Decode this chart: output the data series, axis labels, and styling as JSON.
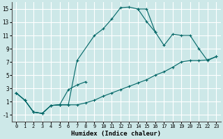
{
  "xlabel": "Humidex (Indice chaleur)",
  "bg_color": "#cde8e8",
  "grid_color": "#ffffff",
  "line_color": "#006666",
  "xlim": [
    -0.5,
    23.5
  ],
  "ylim": [
    -2,
    16
  ],
  "xticks": [
    0,
    1,
    2,
    3,
    4,
    5,
    6,
    7,
    8,
    9,
    10,
    11,
    12,
    13,
    14,
    15,
    16,
    17,
    18,
    19,
    20,
    21,
    22,
    23
  ],
  "yticks": [
    -1,
    1,
    3,
    5,
    7,
    9,
    11,
    13,
    15
  ],
  "curve1_x": [
    0,
    1,
    2,
    3,
    4,
    5,
    6,
    7,
    9,
    10,
    11,
    12,
    13,
    14,
    15,
    16
  ],
  "curve1_y": [
    2.3,
    1.2,
    -0.6,
    -0.8,
    0.4,
    0.5,
    0.5,
    7.2,
    11.0,
    12.0,
    13.5,
    15.2,
    15.3,
    15.0,
    13.1,
    11.5
  ],
  "curve2_x": [
    0,
    1,
    2,
    3,
    4,
    5,
    6,
    7,
    8,
    19,
    20,
    21,
    22,
    23
  ],
  "curve2_y": [
    2.3,
    1.2,
    -0.6,
    -0.8,
    0.4,
    0.5,
    2.8,
    3.5,
    4.0,
    11.0,
    11.0,
    9.0,
    7.2,
    7.8
  ],
  "curve2b_x": [
    14,
    15,
    16,
    17,
    18,
    19,
    20,
    21,
    22,
    23
  ],
  "curve2b_y": [
    15.0,
    15.0,
    11.5,
    9.5,
    11.2,
    11.0,
    11.0,
    9.0,
    7.2,
    7.8
  ],
  "curve3_x": [
    0,
    1,
    2,
    3,
    4,
    5,
    6,
    7,
    8,
    9,
    10,
    11,
    12,
    13,
    14,
    15,
    16,
    17,
    18,
    19,
    20,
    21,
    22,
    23
  ],
  "curve3_y": [
    2.3,
    1.2,
    -0.6,
    -0.8,
    0.4,
    0.5,
    0.5,
    0.5,
    0.8,
    1.2,
    1.8,
    2.3,
    2.8,
    3.3,
    3.8,
    4.3,
    5.0,
    5.5,
    6.2,
    7.0,
    7.2,
    7.2,
    7.3,
    7.8
  ]
}
